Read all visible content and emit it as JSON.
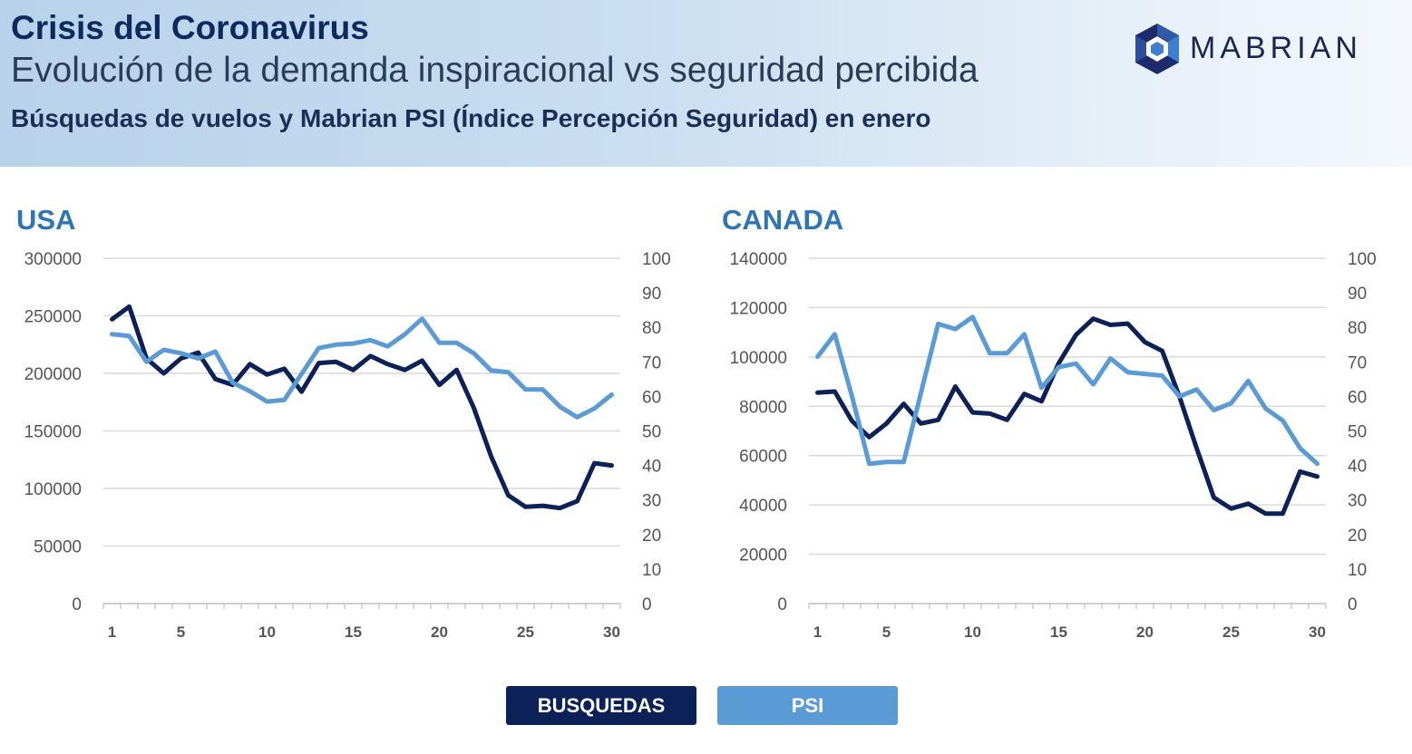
{
  "header": {
    "title": "Crisis del Coronavirus",
    "subtitle": "Evolución de la demanda inspiracional vs seguridad percibida",
    "description": "Búsquedas de vuelos y Mabrian PSI (Índice Percepción Seguridad) en enero",
    "logo_text": "MABRIAN"
  },
  "legend": {
    "busquedas_label": "BUSQUEDAS",
    "psi_label": "PSI"
  },
  "colors": {
    "busquedas": "#0d2159",
    "psi": "#5b9bd5",
    "title": "#2e75b6"
  },
  "chart_data": [
    {
      "type": "line",
      "title": "USA",
      "x": [
        1,
        2,
        3,
        4,
        5,
        6,
        7,
        8,
        9,
        10,
        11,
        12,
        13,
        14,
        15,
        16,
        17,
        18,
        19,
        20,
        21,
        22,
        23,
        24,
        25,
        26,
        27,
        28,
        29,
        30
      ],
      "x_ticks": [
        1,
        5,
        10,
        15,
        20,
        25,
        30
      ],
      "ylim": [
        0,
        300000
      ],
      "y_ticks": [
        0,
        50000,
        100000,
        150000,
        200000,
        250000,
        300000
      ],
      "y2lim": [
        0,
        100
      ],
      "y2_ticks": [
        0,
        10,
        20,
        30,
        40,
        50,
        60,
        70,
        80,
        90,
        100
      ],
      "grid": true,
      "series": [
        {
          "name": "BUSQUEDAS",
          "axis": "left",
          "values": [
            247000,
            258000,
            213000,
            200000,
            213000,
            218000,
            195000,
            190000,
            208000,
            199000,
            204000,
            184000,
            209000,
            210000,
            203000,
            215000,
            208000,
            203000,
            211000,
            190000,
            203000,
            170000,
            128000,
            94000,
            84000,
            85000,
            83000,
            89000,
            122000,
            120000
          ]
        },
        {
          "name": "PSI",
          "axis": "right",
          "values": [
            78,
            77.5,
            70,
            73.5,
            72.5,
            71,
            73,
            64,
            61.5,
            58.5,
            59,
            66.5,
            74,
            75,
            75.3,
            76.3,
            74.5,
            78,
            82.5,
            75.5,
            75.5,
            72.5,
            67.5,
            67,
            62,
            62,
            57,
            54,
            56.5,
            60.5
          ]
        }
      ]
    },
    {
      "type": "line",
      "title": "CANADA",
      "x": [
        1,
        2,
        3,
        4,
        5,
        6,
        7,
        8,
        9,
        10,
        11,
        12,
        13,
        14,
        15,
        16,
        17,
        18,
        19,
        20,
        21,
        22,
        23,
        24,
        25,
        26,
        27,
        28,
        29,
        30
      ],
      "x_ticks": [
        1,
        5,
        10,
        15,
        20,
        25,
        30
      ],
      "ylim": [
        0,
        140000
      ],
      "y_ticks": [
        0,
        20000,
        40000,
        60000,
        80000,
        100000,
        120000,
        140000
      ],
      "y2lim": [
        0,
        100
      ],
      "y2_ticks": [
        0,
        10,
        20,
        30,
        40,
        50,
        60,
        70,
        80,
        90,
        100
      ],
      "grid": true,
      "series": [
        {
          "name": "BUSQUEDAS",
          "axis": "left",
          "values": [
            85500,
            86000,
            74000,
            67500,
            73000,
            81000,
            73000,
            74500,
            88000,
            77500,
            77000,
            74500,
            85000,
            82000,
            97500,
            109000,
            115500,
            113000,
            113500,
            106000,
            102500,
            84000,
            63000,
            43000,
            38500,
            40500,
            36500,
            36500,
            53500,
            51500
          ]
        },
        {
          "name": "PSI",
          "axis": "right",
          "values": [
            71.5,
            78,
            60,
            40.5,
            41,
            41,
            61,
            81,
            79.5,
            83,
            72.5,
            72.5,
            78,
            62.5,
            68.5,
            69.5,
            63.5,
            71,
            67,
            66.5,
            66,
            60,
            62,
            56,
            58,
            64.5,
            56.5,
            53,
            45,
            40.5
          ]
        }
      ]
    }
  ]
}
